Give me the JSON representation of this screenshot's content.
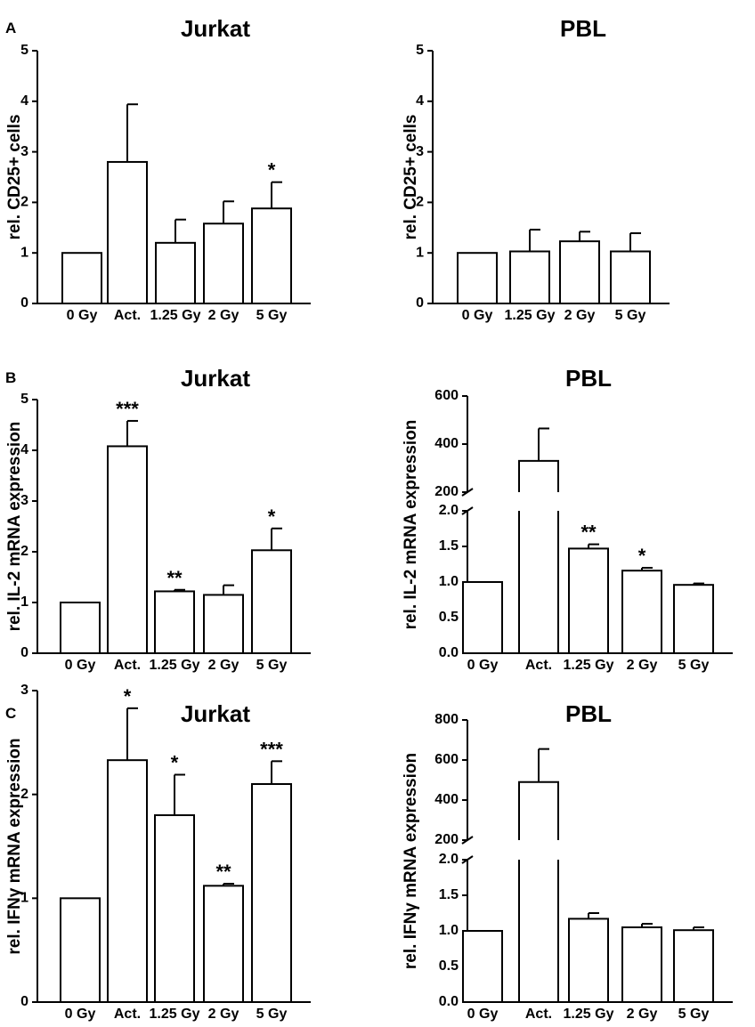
{
  "panels": [
    {
      "letter": "A"
    },
    {
      "letter": "B"
    },
    {
      "letter": "C"
    }
  ],
  "chart_data": [
    {
      "panel": "A",
      "type": "bar",
      "title": "Jurkat",
      "ylabel": "rel. CD25+ cells",
      "categories": [
        "0 Gy",
        "Act.",
        "1.25 Gy",
        "2 Gy",
        "5 Gy"
      ],
      "values": [
        1.0,
        2.8,
        1.2,
        1.58,
        1.88
      ],
      "errors": [
        0,
        1.14,
        0.46,
        0.44,
        0.52
      ],
      "significance": [
        "",
        "",
        "",
        "",
        "*"
      ],
      "ylim": [
        0,
        5
      ],
      "yticks": [
        "0",
        "1",
        "2",
        "3",
        "4",
        "5"
      ]
    },
    {
      "panel": "A",
      "type": "bar",
      "title": "PBL",
      "ylabel": "rel. CD25+ cells",
      "categories": [
        "0 Gy",
        "1.25 Gy",
        "2 Gy",
        "5 Gy"
      ],
      "values": [
        1.0,
        1.03,
        1.23,
        1.03
      ],
      "errors": [
        0,
        0.43,
        0.19,
        0.36
      ],
      "significance": [
        "",
        "",
        "",
        ""
      ],
      "ylim": [
        0,
        5
      ],
      "yticks": [
        "0",
        "1",
        "2",
        "3",
        "4",
        "5"
      ]
    },
    {
      "panel": "B",
      "type": "bar",
      "title": "Jurkat",
      "ylabel": "rel. IL-2 mRNA expression",
      "categories": [
        "0 Gy",
        "Act.",
        "1.25 Gy",
        "2 Gy",
        "5 Gy"
      ],
      "values": [
        1.0,
        4.08,
        1.22,
        1.15,
        2.03
      ],
      "errors": [
        0,
        0.5,
        0.03,
        0.19,
        0.43
      ],
      "significance": [
        "",
        "***",
        "**",
        "",
        "*"
      ],
      "ylim": [
        0,
        5
      ],
      "yticks": [
        "0",
        "1",
        "2",
        "3",
        "4",
        "5"
      ]
    },
    {
      "panel": "B",
      "type": "bar",
      "title": "PBL",
      "ylabel": "rel. IL-2 mRNA expression",
      "categories": [
        "0 Gy",
        "Act.",
        "1.25 Gy",
        "2 Gy",
        "5 Gy"
      ],
      "values": [
        1.0,
        330,
        1.47,
        1.16,
        0.96
      ],
      "errors": [
        0,
        135,
        0.06,
        0.04,
        0.02
      ],
      "significance": [
        "",
        "",
        "**",
        "*",
        ""
      ],
      "broken_axis": true,
      "ylim_lower": [
        0,
        2.0
      ],
      "yticks_lower": [
        "0.0",
        "0.5",
        "1.0",
        "1.5",
        "2.0"
      ],
      "ylim_upper": [
        200,
        600
      ],
      "yticks_upper": [
        "200",
        "400",
        "600"
      ]
    },
    {
      "panel": "C",
      "type": "bar",
      "title": "Jurkat",
      "ylabel": "rel. IFNγ mRNA expression",
      "categories": [
        "0 Gy",
        "Act.",
        "1.25 Gy",
        "2 Gy",
        "5 Gy"
      ],
      "values": [
        1.0,
        2.33,
        1.8,
        1.12,
        2.1
      ],
      "errors": [
        0,
        0.5,
        0.39,
        0.02,
        0.22
      ],
      "significance": [
        "",
        "*",
        "*",
        "**",
        "***"
      ],
      "ylim": [
        0,
        3
      ],
      "yticks": [
        "0",
        "1",
        "2",
        "3"
      ]
    },
    {
      "panel": "C",
      "type": "bar",
      "title": "PBL",
      "ylabel": "rel. IFNγ mRNA expression",
      "categories": [
        "0 Gy",
        "Act.",
        "1.25 Gy",
        "2 Gy",
        "5 Gy"
      ],
      "values": [
        1.0,
        490,
        1.17,
        1.05,
        1.01
      ],
      "errors": [
        0,
        165,
        0.08,
        0.05,
        0.04
      ],
      "significance": [
        "",
        "",
        "",
        "",
        ""
      ],
      "broken_axis": true,
      "ylim_lower": [
        0,
        2.0
      ],
      "yticks_lower": [
        "0.0",
        "0.5",
        "1.0",
        "1.5",
        "2.0"
      ],
      "ylim_upper": [
        200,
        800
      ],
      "yticks_upper": [
        "200",
        "400",
        "600",
        "800"
      ]
    }
  ]
}
